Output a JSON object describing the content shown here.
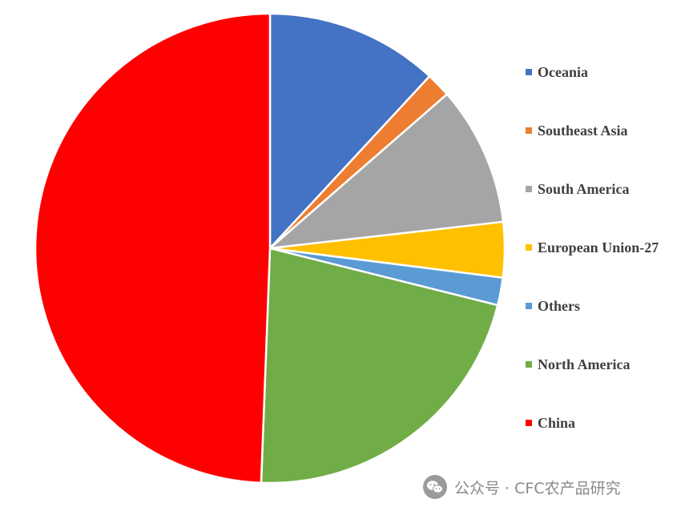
{
  "chart_data": {
    "type": "pie",
    "title": "",
    "start_angle_deg": 90,
    "direction": "clockwise",
    "slice_border_color": "#ffffff",
    "slices": [
      {
        "label": "Oceania",
        "value": 11.9,
        "color": "#4472C4"
      },
      {
        "label": "Southeast Asia",
        "value": 1.7,
        "color": "#ED7D31"
      },
      {
        "label": "South America",
        "value": 9.6,
        "color": "#A5A5A5"
      },
      {
        "label": "European Union-27",
        "value": 3.8,
        "color": "#FFC000"
      },
      {
        "label": "Others",
        "value": 1.9,
        "color": "#5B9BD5"
      },
      {
        "label": "North America",
        "value": 21.7,
        "color": "#70AD47"
      },
      {
        "label": "China",
        "value": 49.4,
        "color": "#FF0000"
      }
    ],
    "legend": {
      "placement": "right",
      "items": [
        "Oceania",
        "Southeast Asia",
        "South America",
        "European Union-27",
        "Others",
        "North America",
        "China"
      ]
    }
  },
  "watermark": {
    "text": "公众号 · CFC农产品研究",
    "icon": "wechat-icon",
    "color": "#8a8a8a"
  }
}
